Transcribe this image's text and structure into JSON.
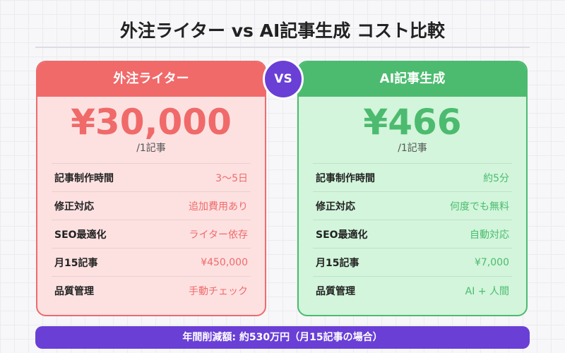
{
  "title": "外注ライター vs AI記事生成 コスト比較",
  "vs": "VS",
  "cards": [
    {
      "name": "外注ライター",
      "price": "¥30,000",
      "unit": "/1記事",
      "rows": [
        {
          "label": "記事制作時間",
          "value": "3〜5日"
        },
        {
          "label": "修正対応",
          "value": "追加費用あり"
        },
        {
          "label": "SEO最適化",
          "value": "ライター依存"
        },
        {
          "label": "月15記事",
          "value": "¥450,000"
        },
        {
          "label": "品質管理",
          "value": "手動チェック"
        }
      ]
    },
    {
      "name": "AI記事生成",
      "price": "¥466",
      "unit": "/1記事",
      "rows": [
        {
          "label": "記事制作時間",
          "value": "約5分"
        },
        {
          "label": "修正対応",
          "value": "何度でも無料"
        },
        {
          "label": "SEO最適化",
          "value": "自動対応"
        },
        {
          "label": "月15記事",
          "value": "¥7,000"
        },
        {
          "label": "品質管理",
          "value": "AI + 人間"
        }
      ]
    }
  ],
  "footer": "年間削減額: 約530万円（月15記事の場合）"
}
